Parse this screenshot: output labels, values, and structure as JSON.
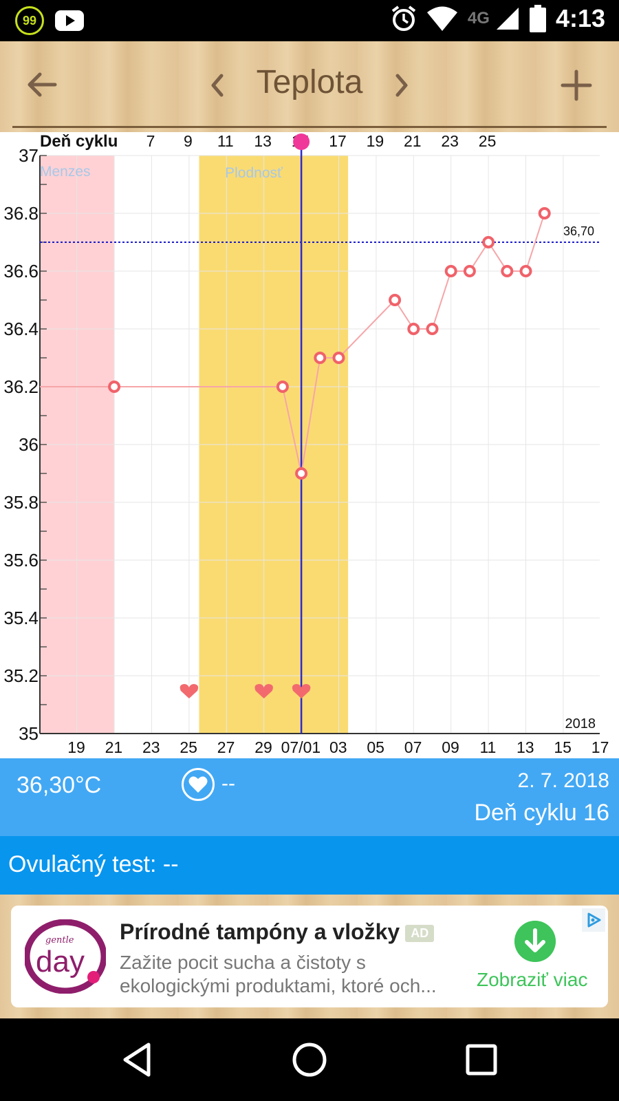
{
  "status_bar": {
    "notification_badge": "99",
    "network": "4G",
    "time": "4:13",
    "icons": [
      "badge-icon",
      "youtube-icon",
      "alarm-icon",
      "wifi-icon",
      "signal-icon",
      "battery-icon"
    ]
  },
  "toolbar": {
    "title": "Teplota",
    "back_icon": "arrow-back-icon",
    "prev_icon": "chevron-left-icon",
    "next_icon": "chevron-right-icon",
    "add_icon": "plus-icon"
  },
  "chart_data": {
    "type": "line",
    "xlabel": "",
    "ylabel": "",
    "top_axis_label": "Deň cyklu",
    "top_axis_ticks": [
      "7",
      "9",
      "11",
      "13",
      "15",
      "17",
      "19",
      "21",
      "23",
      "25"
    ],
    "x_dates": [
      "2018-06-17",
      "2018-06-18",
      "2018-06-19",
      "2018-06-20",
      "2018-06-21",
      "2018-06-22",
      "2018-06-23",
      "2018-06-24",
      "2018-06-25",
      "2018-06-26",
      "2018-06-27",
      "2018-06-28",
      "2018-06-29",
      "2018-06-30",
      "2018-07-01",
      "2018-07-02",
      "2018-07-03",
      "2018-07-04",
      "2018-07-05",
      "2018-07-06",
      "2018-07-07",
      "2018-07-08",
      "2018-07-09",
      "2018-07-10",
      "2018-07-11",
      "2018-07-12",
      "2018-07-13",
      "2018-07-14",
      "2018-07-15",
      "2018-07-16",
      "2018-07-17"
    ],
    "bottom_axis_ticks": [
      "19",
      "21",
      "23",
      "25",
      "27",
      "29",
      "07/01",
      "03",
      "05",
      "07",
      "09",
      "11",
      "13",
      "15",
      "17"
    ],
    "ylim": [
      35,
      37
    ],
    "y_ticks": [
      "35",
      "35.2",
      "35.4",
      "35.6",
      "35.8",
      "36",
      "36.2",
      "36.4",
      "36.6",
      "36.8",
      "37"
    ],
    "series": [
      {
        "points": [
          {
            "x": "2018-06-17",
            "y": 36.2,
            "marker": false
          },
          {
            "x": "2018-06-20",
            "y": 36.2
          },
          {
            "x": "2018-06-29",
            "y": 36.2
          },
          {
            "x": "2018-06-30",
            "y": 35.9
          },
          {
            "x": "2018-07-01",
            "y": 36.3
          },
          {
            "x": "2018-07-02",
            "y": 36.3
          },
          {
            "x": "2018-07-05",
            "y": 36.5
          },
          {
            "x": "2018-07-06",
            "y": 36.4
          },
          {
            "x": "2018-07-07",
            "y": 36.4
          },
          {
            "x": "2018-07-08",
            "y": 36.6
          },
          {
            "x": "2018-07-09",
            "y": 36.6
          },
          {
            "x": "2018-07-10",
            "y": 36.7
          },
          {
            "x": "2018-07-11",
            "y": 36.6
          },
          {
            "x": "2018-07-12",
            "y": 36.6
          },
          {
            "x": "2018-07-13",
            "y": 36.8
          }
        ],
        "color": "#f0626a"
      }
    ],
    "coverline": {
      "value": 36.7,
      "label": "36,70",
      "color": "#1a1acc"
    },
    "bands": [
      {
        "label": "Menzes",
        "from": "2018-06-17",
        "to": "2018-06-20",
        "color": "#ffd1d4",
        "label_color": "#a7c8e8"
      },
      {
        "label": "Plodnosť",
        "from": "2018-06-25",
        "to": "2018-07-02",
        "color": "#fadb72",
        "label_color": "#a7c8e8"
      }
    ],
    "selected": {
      "x": "2018-06-30",
      "color": "#2a2ad0"
    },
    "hearts": [
      "2018-06-24",
      "2018-06-28",
      "2018-06-30"
    ],
    "year_label": "2018",
    "grid": true,
    "legend": "none"
  },
  "info": {
    "temperature": "36,30°C",
    "heart_value": "--",
    "date": "2. 7. 2018",
    "cycle_day": "Deň cyklu 16"
  },
  "ovulation": {
    "label": "Ovulačný test:",
    "value": "--"
  },
  "ad": {
    "title": "Prírodné tampóny a vložky",
    "badge": "AD",
    "description": "Zažite pocit sucha a čistoty s ekologickými produktami, ktoré och...",
    "cta": "Zobraziť viac",
    "logo_word": "day",
    "logo_small": "gentle"
  },
  "nav": {
    "back_icon": "nav-back-icon",
    "home_icon": "nav-home-icon",
    "recents_icon": "nav-recents-icon"
  }
}
